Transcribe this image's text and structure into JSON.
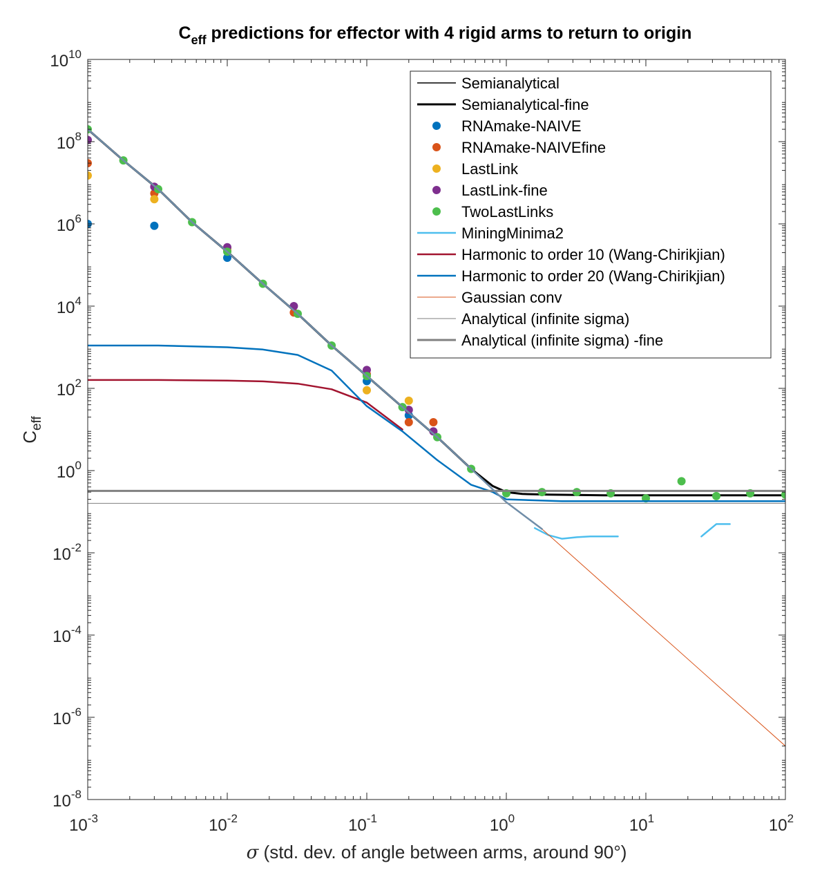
{
  "chart_data": {
    "type": "line",
    "title": "C",
    "title_subscript": "eff",
    "title_rest": " predictions for effector with 4 rigid arms to return to origin",
    "xlabel_symbol": "σ",
    "xlabel": " (std. dev. of angle between arms, around 90°)",
    "ylabel": "C",
    "ylabel_subscript": "eff",
    "x_scale": "log",
    "y_scale": "log",
    "xlim": [
      0.001,
      100
    ],
    "ylim": [
      1e-08,
      10000000000.0
    ],
    "x_ticks": [
      {
        "base": "10",
        "exp": "-3",
        "value": 0.001
      },
      {
        "base": "10",
        "exp": "-2",
        "value": 0.01
      },
      {
        "base": "10",
        "exp": "-1",
        "value": 0.1
      },
      {
        "base": "10",
        "exp": "0",
        "value": 1
      },
      {
        "base": "10",
        "exp": "1",
        "value": 10
      },
      {
        "base": "10",
        "exp": "2",
        "value": 100
      }
    ],
    "y_ticks": [
      {
        "base": "10",
        "exp": "-8",
        "value": 1e-08
      },
      {
        "base": "10",
        "exp": "-6",
        "value": 1e-06
      },
      {
        "base": "10",
        "exp": "-4",
        "value": 0.0001
      },
      {
        "base": "10",
        "exp": "-2",
        "value": 0.01
      },
      {
        "base": "10",
        "exp": "0",
        "value": 1
      },
      {
        "base": "10",
        "exp": "2",
        "value": 100
      },
      {
        "base": "10",
        "exp": "4",
        "value": 10000
      },
      {
        "base": "10",
        "exp": "6",
        "value": 1000000.0
      },
      {
        "base": "10",
        "exp": "8",
        "value": 100000000.0
      },
      {
        "base": "10",
        "exp": "10",
        "value": 10000000000.0
      }
    ],
    "grid": false,
    "legend_position": "top-right",
    "series": [
      {
        "name": "Semianalytical",
        "kind": "line",
        "color": "#000000",
        "width": 1.5,
        "x": [
          0.001,
          0.0018,
          0.0032,
          0.0056,
          0.01,
          0.018,
          0.032,
          0.056,
          0.1,
          0.18,
          0.32,
          0.56,
          0.8,
          1.0,
          1.3,
          2,
          5,
          10,
          100
        ],
        "y": [
          200000000.0,
          35000000.0,
          7000000.0,
          1100000.0,
          210000.0,
          35000.0,
          6500.0,
          1100.0,
          200.0,
          35.0,
          6.5,
          1.1,
          0.42,
          0.3,
          0.27,
          0.26,
          0.25,
          0.25,
          0.25
        ]
      },
      {
        "name": "Semianalytical-fine",
        "kind": "line",
        "color": "#000000",
        "width": 3,
        "x": [
          0.001,
          0.0018,
          0.0032,
          0.0056,
          0.01,
          0.018,
          0.032,
          0.056,
          0.1,
          0.18,
          0.32,
          0.56,
          0.8,
          1.0,
          1.3,
          2,
          5,
          10,
          100
        ],
        "y": [
          200000000.0,
          35000000.0,
          7000000.0,
          1100000.0,
          210000.0,
          35000.0,
          6500.0,
          1100.0,
          200.0,
          35.0,
          6.5,
          1.1,
          0.42,
          0.3,
          0.27,
          0.26,
          0.25,
          0.25,
          0.25
        ]
      },
      {
        "name": "RNAmake-NAIVE",
        "kind": "scatter",
        "color": "#0072BD",
        "x": [
          0.001,
          0.003,
          0.01,
          0.1,
          0.2
        ],
        "y": [
          1000000.0,
          900000.0,
          150000.0,
          150.0,
          22.0
        ]
      },
      {
        "name": "RNAmake-NAIVEfine",
        "kind": "scatter",
        "color": "#D95319",
        "x": [
          0.001,
          0.003,
          0.01,
          0.03,
          0.1,
          0.2,
          0.3
        ],
        "y": [
          30000000.0,
          5500000.0,
          220000.0,
          7000.0,
          220.0,
          15.0,
          15.0
        ]
      },
      {
        "name": "LastLink",
        "kind": "scatter",
        "color": "#EDB120",
        "x": [
          0.001,
          0.003,
          0.01,
          0.1,
          0.2
        ],
        "y": [
          15000000.0,
          4000000.0,
          250000.0,
          90.0,
          50.0
        ]
      },
      {
        "name": "LastLink-fine",
        "kind": "scatter",
        "color": "#7E2F8E",
        "x": [
          0.001,
          0.003,
          0.01,
          0.03,
          0.1,
          0.2,
          0.3
        ],
        "y": [
          110000000.0,
          8000000.0,
          270000.0,
          10000.0,
          280.0,
          30.0,
          9
        ]
      },
      {
        "name": "TwoLastLinks",
        "kind": "scatter",
        "color": "#4DBE4D",
        "x": [
          0.001,
          0.0018,
          0.0032,
          0.0056,
          0.01,
          0.018,
          0.032,
          0.056,
          0.1,
          0.18,
          0.32,
          0.56,
          1.0,
          1.8,
          3.2,
          5.6,
          10,
          18,
          32,
          56,
          100
        ],
        "y": [
          200000000.0,
          35000000.0,
          7000000.0,
          1100000.0,
          210000.0,
          35000.0,
          6500.0,
          1100.0,
          200.0,
          35.0,
          6.5,
          1.1,
          0.28,
          0.3,
          0.3,
          0.28,
          0.21,
          0.55,
          0.24,
          0.28,
          0.26
        ]
      },
      {
        "name": "MiningMinima2",
        "kind": "line",
        "color": "#4DBEEE",
        "width": 2.5,
        "segments": [
          {
            "x": [
              1.6,
              2.0,
              2.5,
              3.2,
              4.0,
              6.3
            ],
            "y": [
              0.04,
              0.027,
              0.022,
              0.024,
              0.025,
              0.025
            ]
          },
          {
            "x": [
              25,
              32,
              40
            ],
            "y": [
              0.025,
              0.05,
              0.05
            ]
          }
        ]
      },
      {
        "name": "Harmonic to order 10 (Wang-Chirikjian)",
        "kind": "line",
        "color": "#A2142F",
        "width": 2.5,
        "x": [
          0.001,
          0.0032,
          0.01,
          0.018,
          0.032,
          0.056,
          0.1,
          0.18
        ],
        "y": [
          160,
          160,
          155,
          148,
          130,
          95,
          45,
          10
        ]
      },
      {
        "name": "Harmonic to order 20 (Wang-Chirikjian)",
        "kind": "line",
        "color": "#0072BD",
        "width": 2.5,
        "x": [
          0.001,
          0.0032,
          0.01,
          0.018,
          0.032,
          0.056,
          0.1,
          0.18,
          0.32,
          0.56,
          0.8,
          1.0,
          2.5,
          100
        ],
        "y": [
          1100,
          1100,
          1000,
          880,
          650,
          270,
          37,
          9,
          1.8,
          0.45,
          0.3,
          0.2,
          0.18,
          0.18
        ]
      },
      {
        "name": "Gaussian conv",
        "kind": "line",
        "color": "#D95319",
        "width": 1,
        "x": [
          0.001,
          0.0018,
          0.0032,
          0.0056,
          0.01,
          0.018,
          0.032,
          0.056,
          0.1,
          0.18,
          0.32,
          0.56,
          1.0,
          1.8,
          100
        ],
        "y": [
          200000000.0,
          35000000.0,
          7000000.0,
          1100000.0,
          210000.0,
          35000.0,
          6500.0,
          1100.0,
          200.0,
          35.0,
          6.5,
          1.1,
          0.17,
          0.038,
          2e-07
        ]
      },
      {
        "name": "Analytical (infinite sigma)",
        "kind": "line",
        "color": "#7f7f7f",
        "width": 1,
        "x": [
          0.001,
          100
        ],
        "y": [
          0.16,
          0.16
        ]
      },
      {
        "name": "Analytical (infinite sigma) -fine",
        "kind": "line",
        "color": "#808080",
        "width": 3,
        "x": [
          0.001,
          100
        ],
        "y": [
          0.32,
          0.32
        ]
      },
      {
        "kind": "line",
        "color": "#708DA8",
        "width": 2.5,
        "x": [
          0.001,
          0.0018,
          0.0032,
          0.0056,
          0.01,
          0.018,
          0.032,
          0.056,
          0.1,
          0.18,
          0.32,
          0.56,
          1.0,
          1.8
        ],
        "y": [
          200000000.0,
          35000000.0,
          7000000.0,
          1100000.0,
          210000.0,
          35000.0,
          6500.0,
          1100.0,
          200.0,
          35.0,
          6.5,
          1.1,
          0.17,
          0.038
        ]
      }
    ]
  }
}
